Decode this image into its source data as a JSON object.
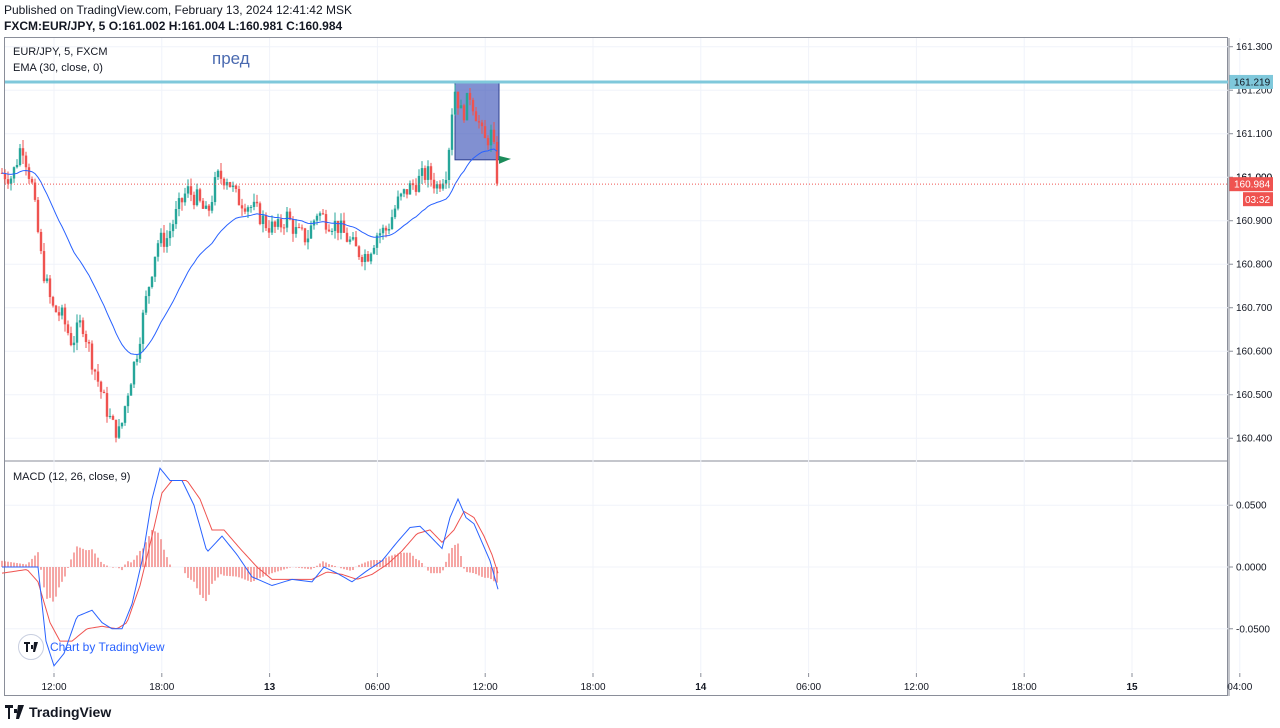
{
  "header": {
    "published": "Published on TradingView.com, February 13, 2024 12:41:42 MSK",
    "symbol": "FXCM:EUR/JPY, 5",
    "ohlc": " O:161.002 H:161.004 L:160.981 C:160.984"
  },
  "legend": {
    "symbol": "EUR/JPY, 5, FXCM",
    "ema": "EMA (30, close, 0)",
    "macd": "MACD (12, 26, close, 9)"
  },
  "annotation": {
    "text": "пред"
  },
  "attribution": {
    "text": "Chart by TradingView"
  },
  "footer": {
    "brand": "TradingView"
  },
  "colors": {
    "up": "#26a69a",
    "down": "#ef5350",
    "ema": "#2962ff",
    "macd_line": "#2962ff",
    "signal_line": "#ef5350",
    "level_line": "#7fc8db",
    "rect_fill": "#3d55b8",
    "flag": "#1b8c5a",
    "price_label": "#ef5350",
    "grid": "#f0f3fa"
  },
  "chart_data": [
    {
      "type": "candlestick",
      "title": "EUR/JPY, 5, FXCM",
      "x_ticks": [
        "12:00",
        "18:00",
        "13",
        "06:00",
        "12:00",
        "18:00",
        "14",
        "06:00",
        "12:00",
        "18:00",
        "15",
        "04:00"
      ],
      "ylim": [
        160.35,
        161.32
      ],
      "y_ticks": [
        "161.300",
        "161.200",
        "161.100",
        "161.000",
        "160.900",
        "160.800",
        "160.700",
        "160.600",
        "160.500",
        "160.400"
      ],
      "price_path": [
        [
          0,
          161.01
        ],
        [
          10,
          161.0
        ],
        [
          20,
          161.08
        ],
        [
          30,
          160.98
        ],
        [
          40,
          160.8
        ],
        [
          50,
          160.7
        ],
        [
          60,
          160.68
        ],
        [
          70,
          160.62
        ],
        [
          80,
          160.67
        ],
        [
          90,
          160.58
        ],
        [
          100,
          160.5
        ],
        [
          110,
          160.43
        ],
        [
          118,
          160.41
        ],
        [
          125,
          160.5
        ],
        [
          135,
          160.6
        ],
        [
          145,
          160.73
        ],
        [
          155,
          160.85
        ],
        [
          165,
          160.86
        ],
        [
          175,
          160.92
        ],
        [
          185,
          160.97
        ],
        [
          195,
          160.95
        ],
        [
          205,
          160.91
        ],
        [
          215,
          161.0
        ],
        [
          225,
          161.0
        ],
        [
          235,
          160.95
        ],
        [
          245,
          160.94
        ],
        [
          255,
          160.92
        ],
        [
          265,
          160.89
        ],
        [
          275,
          160.88
        ],
        [
          285,
          160.91
        ],
        [
          295,
          160.87
        ],
        [
          305,
          160.86
        ],
        [
          315,
          160.92
        ],
        [
          325,
          160.9
        ],
        [
          335,
          160.89
        ],
        [
          345,
          160.86
        ],
        [
          355,
          160.83
        ],
        [
          365,
          160.82
        ],
        [
          375,
          160.87
        ],
        [
          385,
          160.88
        ],
        [
          395,
          160.94
        ],
        [
          405,
          160.97
        ],
        [
          415,
          160.99
        ],
        [
          425,
          161.01
        ],
        [
          435,
          160.98
        ],
        [
          445,
          161.02
        ],
        [
          452,
          161.21
        ],
        [
          460,
          161.14
        ],
        [
          468,
          161.19
        ],
        [
          475,
          161.14
        ],
        [
          482,
          161.08
        ],
        [
          490,
          161.1
        ],
        [
          496,
          160.98
        ]
      ],
      "ema": {
        "name": "EMA (30, close, 0)"
      },
      "price_level": {
        "value": 161.219,
        "label": "161.219"
      },
      "last_price": {
        "value": 160.984,
        "label": "160.984",
        "countdown": "03:32"
      },
      "hidden_tick": "161.000",
      "rectangle": {
        "x_from": 453,
        "x_to": 497,
        "y_from": 161.219,
        "y_to": 161.04
      },
      "flag_price": 161.04
    },
    {
      "type": "line",
      "title": "MACD (12, 26, close, 9)",
      "ylim": [
        -0.085,
        0.085
      ],
      "y_ticks": [
        "0.0500",
        "0.0000",
        "-0.0500"
      ],
      "series": [
        {
          "name": "MACD",
          "points": [
            [
              0,
              0
            ],
            [
              25,
              0
            ],
            [
              36,
              0.0
            ],
            [
              44,
              -0.06
            ],
            [
              52,
              -0.08
            ],
            [
              62,
              -0.07
            ],
            [
              75,
              -0.04
            ],
            [
              90,
              -0.035
            ],
            [
              100,
              -0.045
            ],
            [
              110,
              -0.05
            ],
            [
              120,
              -0.05
            ],
            [
              130,
              -0.03
            ],
            [
              140,
              0.005
            ],
            [
              150,
              0.055
            ],
            [
              158,
              0.08
            ],
            [
              168,
              0.07
            ],
            [
              180,
              0.07
            ],
            [
              192,
              0.05
            ],
            [
              205,
              0.012
            ],
            [
              220,
              0.025
            ],
            [
              235,
              0.01
            ],
            [
              250,
              -0.008
            ],
            [
              270,
              -0.015
            ],
            [
              290,
              -0.01
            ],
            [
              310,
              -0.012
            ],
            [
              322,
              0.0
            ],
            [
              335,
              -0.005
            ],
            [
              350,
              -0.012
            ],
            [
              365,
              -0.003
            ],
            [
              380,
              0.005
            ],
            [
              395,
              0.02
            ],
            [
              408,
              0.032
            ],
            [
              418,
              0.033
            ],
            [
              428,
              0.025
            ],
            [
              440,
              0.015
            ],
            [
              448,
              0.04
            ],
            [
              456,
              0.055
            ],
            [
              464,
              0.04
            ],
            [
              472,
              0.035
            ],
            [
              480,
              0.02
            ],
            [
              488,
              0.005
            ],
            [
              496,
              -0.018
            ]
          ]
        },
        {
          "name": "Signal",
          "points": [
            [
              0,
              -0.005
            ],
            [
              25,
              -0.002
            ],
            [
              36,
              -0.012
            ],
            [
              48,
              -0.045
            ],
            [
              58,
              -0.06
            ],
            [
              70,
              -0.06
            ],
            [
              85,
              -0.05
            ],
            [
              100,
              -0.048
            ],
            [
              115,
              -0.05
            ],
            [
              125,
              -0.045
            ],
            [
              138,
              -0.015
            ],
            [
              150,
              0.025
            ],
            [
              160,
              0.06
            ],
            [
              170,
              0.07
            ],
            [
              185,
              0.07
            ],
            [
              198,
              0.055
            ],
            [
              210,
              0.03
            ],
            [
              222,
              0.03
            ],
            [
              238,
              0.015
            ],
            [
              255,
              0.0
            ],
            [
              270,
              -0.01
            ],
            [
              290,
              -0.01
            ],
            [
              310,
              -0.01
            ],
            [
              325,
              -0.004
            ],
            [
              340,
              -0.006
            ],
            [
              355,
              -0.01
            ],
            [
              370,
              -0.006
            ],
            [
              385,
              0.002
            ],
            [
              400,
              0.013
            ],
            [
              415,
              0.027
            ],
            [
              428,
              0.03
            ],
            [
              440,
              0.02
            ],
            [
              452,
              0.03
            ],
            [
              462,
              0.045
            ],
            [
              472,
              0.04
            ],
            [
              482,
              0.025
            ],
            [
              490,
              0.01
            ],
            [
              496,
              -0.005
            ]
          ]
        }
      ],
      "histogram": {
        "name": "Histogram"
      }
    }
  ]
}
